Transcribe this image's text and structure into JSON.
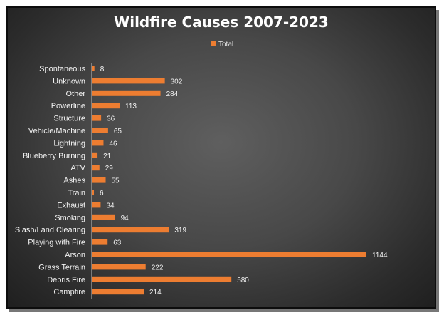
{
  "chart_data": {
    "type": "bar",
    "orientation": "horizontal",
    "title": "Wildfire Causes 2007-2023",
    "xlabel": "",
    "ylabel": "",
    "legend": "top",
    "grid": false,
    "categories": [
      "Spontaneous",
      "Unknown",
      "Other",
      "Powerline",
      "Structure",
      "Vehicle/Machine",
      "Lightning",
      "Blueberry Burning",
      "ATV",
      "Ashes",
      "Train",
      "Exhaust",
      "Smoking",
      "Slash/Land Clearing",
      "Playing with Fire",
      "Arson",
      "Grass Terrain",
      "Debris Fire",
      "Campfire"
    ],
    "series": [
      {
        "name": "Total",
        "values": [
          8,
          302,
          284,
          113,
          36,
          65,
          46,
          21,
          29,
          55,
          6,
          34,
          94,
          319,
          63,
          1144,
          222,
          580,
          214
        ]
      }
    ],
    "xlim": [
      0,
      1144
    ],
    "bar_color": "#ed7d31",
    "background_color": "#404040",
    "text_color": "#ffffff"
  }
}
